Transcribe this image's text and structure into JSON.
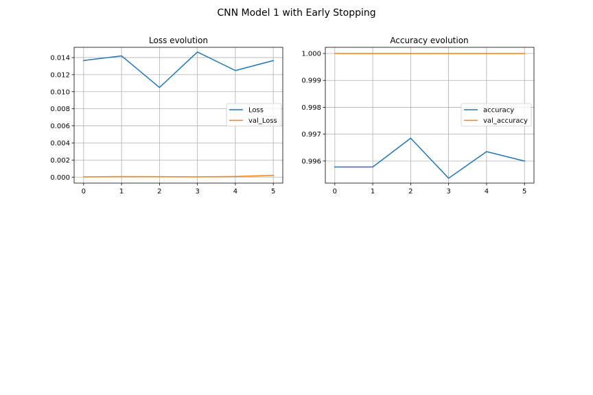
{
  "figure": {
    "suptitle": "CNN Model 1 with Early Stopping"
  },
  "chart_data": [
    {
      "type": "line",
      "title": "Loss evolution",
      "xlabel": "",
      "ylabel": "",
      "x": [
        0,
        1,
        2,
        3,
        4,
        5
      ],
      "xticks": [
        "0",
        "1",
        "2",
        "3",
        "4",
        "5"
      ],
      "xlim": [
        -0.25,
        5.25
      ],
      "ylim": [
        -0.0007,
        0.0152
      ],
      "yticks": [
        "0.000",
        "0.002",
        "0.004",
        "0.006",
        "0.008",
        "0.010",
        "0.012",
        "0.014"
      ],
      "ytick_values": [
        0.0,
        0.002,
        0.004,
        0.006,
        0.008,
        0.01,
        0.012,
        0.014
      ],
      "grid": true,
      "legend_position": "center-right",
      "series": [
        {
          "name": "Loss",
          "color": "#1f77b4",
          "values": [
            0.01365,
            0.0142,
            0.0105,
            0.01465,
            0.01248,
            0.01365
          ]
        },
        {
          "name": "val_Loss",
          "color": "#ff7f0e",
          "values": [
            3e-05,
            6e-05,
            5e-05,
            3e-05,
            7e-05,
            0.0002
          ]
        }
      ]
    },
    {
      "type": "line",
      "title": "Accuracy evolution",
      "xlabel": "",
      "ylabel": "",
      "x": [
        0,
        1,
        2,
        3,
        4,
        5
      ],
      "xticks": [
        "0",
        "1",
        "2",
        "3",
        "4",
        "5"
      ],
      "xlim": [
        -0.25,
        5.25
      ],
      "ylim": [
        0.99518,
        1.00023
      ],
      "yticks": [
        "0.996",
        "0.997",
        "0.998",
        "0.999",
        "1.000"
      ],
      "ytick_values": [
        0.996,
        0.997,
        0.998,
        0.999,
        1.0
      ],
      "grid": true,
      "legend_position": "center-right",
      "series": [
        {
          "name": "accuracy",
          "color": "#1f77b4",
          "values": [
            0.99578,
            0.99578,
            0.99685,
            0.99536,
            0.99635,
            0.996
          ]
        },
        {
          "name": "val_accuracy",
          "color": "#ff7f0e",
          "values": [
            1.0,
            1.0,
            1.0,
            1.0,
            1.0,
            1.0
          ]
        }
      ]
    }
  ]
}
